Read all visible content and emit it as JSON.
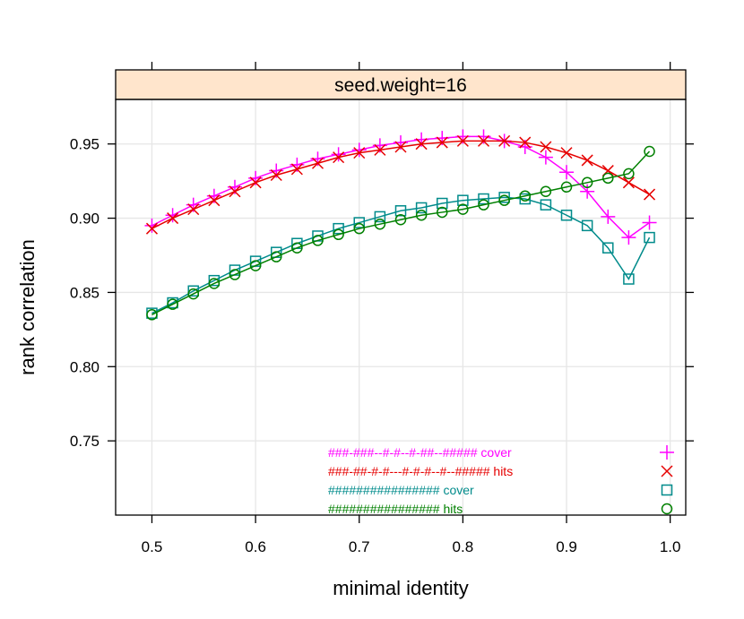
{
  "chart_data": {
    "type": "line",
    "panel_title": "seed.weight=16",
    "xlabel": "minimal identity",
    "ylabel": "rank correlation",
    "xlim": [
      0.465,
      1.015
    ],
    "ylim": [
      0.7,
      0.98
    ],
    "x_ticks": [
      "0.5",
      "0.6",
      "0.7",
      "0.8",
      "0.9",
      "1.0"
    ],
    "y_ticks": [
      "0.75",
      "0.80",
      "0.85",
      "0.90",
      "0.95"
    ],
    "grid": true,
    "legend_position": "bottom-right",
    "x": [
      0.5,
      0.52,
      0.54,
      0.56,
      0.58,
      0.6,
      0.62,
      0.64,
      0.66,
      0.68,
      0.7,
      0.72,
      0.74,
      0.76,
      0.78,
      0.8,
      0.82,
      0.84,
      0.86,
      0.88,
      0.9,
      0.92,
      0.94,
      0.96,
      0.98
    ],
    "series": [
      {
        "name": "###-###--#-#--#-##--##### cover",
        "color": "#ff00ff",
        "marker": "plus",
        "values": [
          0.895,
          0.902,
          0.909,
          0.915,
          0.921,
          0.927,
          0.932,
          0.936,
          0.94,
          0.943,
          0.946,
          0.949,
          0.951,
          0.953,
          0.954,
          0.955,
          0.955,
          0.952,
          0.948,
          0.941,
          0.931,
          0.918,
          0.901,
          0.887,
          0.897
        ]
      },
      {
        "name": "###-##-#-#---#-#-#--#--##### hits",
        "color": "#e60000",
        "marker": "cross",
        "values": [
          0.893,
          0.9,
          0.906,
          0.912,
          0.918,
          0.924,
          0.929,
          0.933,
          0.937,
          0.941,
          0.944,
          0.946,
          0.948,
          0.95,
          0.951,
          0.952,
          0.952,
          0.952,
          0.951,
          0.948,
          0.944,
          0.939,
          0.932,
          0.924,
          0.916
        ]
      },
      {
        "name": "################ cover",
        "color": "#008b8b",
        "marker": "square",
        "values": [
          0.836,
          0.843,
          0.851,
          0.858,
          0.865,
          0.871,
          0.877,
          0.883,
          0.888,
          0.893,
          0.897,
          0.901,
          0.905,
          0.907,
          0.91,
          0.912,
          0.913,
          0.914,
          0.913,
          0.909,
          0.902,
          0.895,
          0.88,
          0.859,
          0.887
        ]
      },
      {
        "name": "################ hits",
        "color": "#008000",
        "marker": "circle",
        "values": [
          0.835,
          0.842,
          0.849,
          0.856,
          0.862,
          0.868,
          0.874,
          0.88,
          0.885,
          0.889,
          0.893,
          0.896,
          0.899,
          0.902,
          0.904,
          0.906,
          0.909,
          0.912,
          0.915,
          0.918,
          0.921,
          0.924,
          0.927,
          0.93,
          0.945
        ]
      }
    ]
  }
}
